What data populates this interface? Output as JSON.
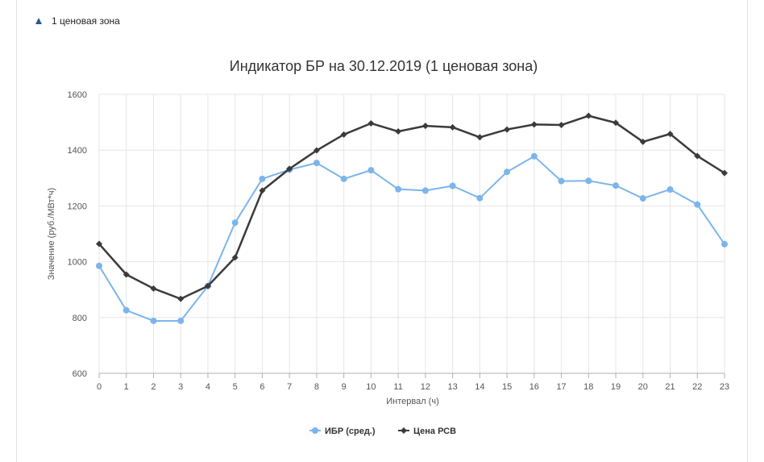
{
  "zone_toggle": {
    "label": "1 ценовая зона",
    "icon": "triangle-up-icon"
  },
  "chart_data": {
    "type": "line",
    "title": "Индикатор БР на 30.12.2019 (1 ценовая зона)",
    "xlabel": "Интервал (ч)",
    "ylabel": "Значение (руб./МВт*ч)",
    "x": [
      0,
      1,
      2,
      3,
      4,
      5,
      6,
      7,
      8,
      9,
      10,
      11,
      12,
      13,
      14,
      15,
      16,
      17,
      18,
      19,
      20,
      21,
      22,
      23
    ],
    "ylim": [
      600,
      1600
    ],
    "yticks": [
      600,
      800,
      1000,
      1200,
      1400,
      1600
    ],
    "grid": true,
    "legend_position": "bottom-center",
    "series": [
      {
        "name": "ИБР (сред.)",
        "color": "#7cb5ec",
        "marker": "circle",
        "values": [
          985,
          826,
          788,
          788,
          913,
          1140,
          1297,
          1330,
          1354,
          1297,
          1328,
          1260,
          1255,
          1272,
          1228,
          1322,
          1378,
          1289,
          1290,
          1273,
          1227,
          1259,
          1205,
          1063
        ]
      },
      {
        "name": "Цена РСВ",
        "color": "#3b3b3b",
        "marker": "diamond",
        "values": [
          1064,
          954,
          904,
          867,
          913,
          1015,
          1255,
          1333,
          1399,
          1456,
          1496,
          1467,
          1487,
          1482,
          1446,
          1474,
          1492,
          1490,
          1523,
          1498,
          1430,
          1458,
          1379,
          1318
        ]
      }
    ]
  }
}
